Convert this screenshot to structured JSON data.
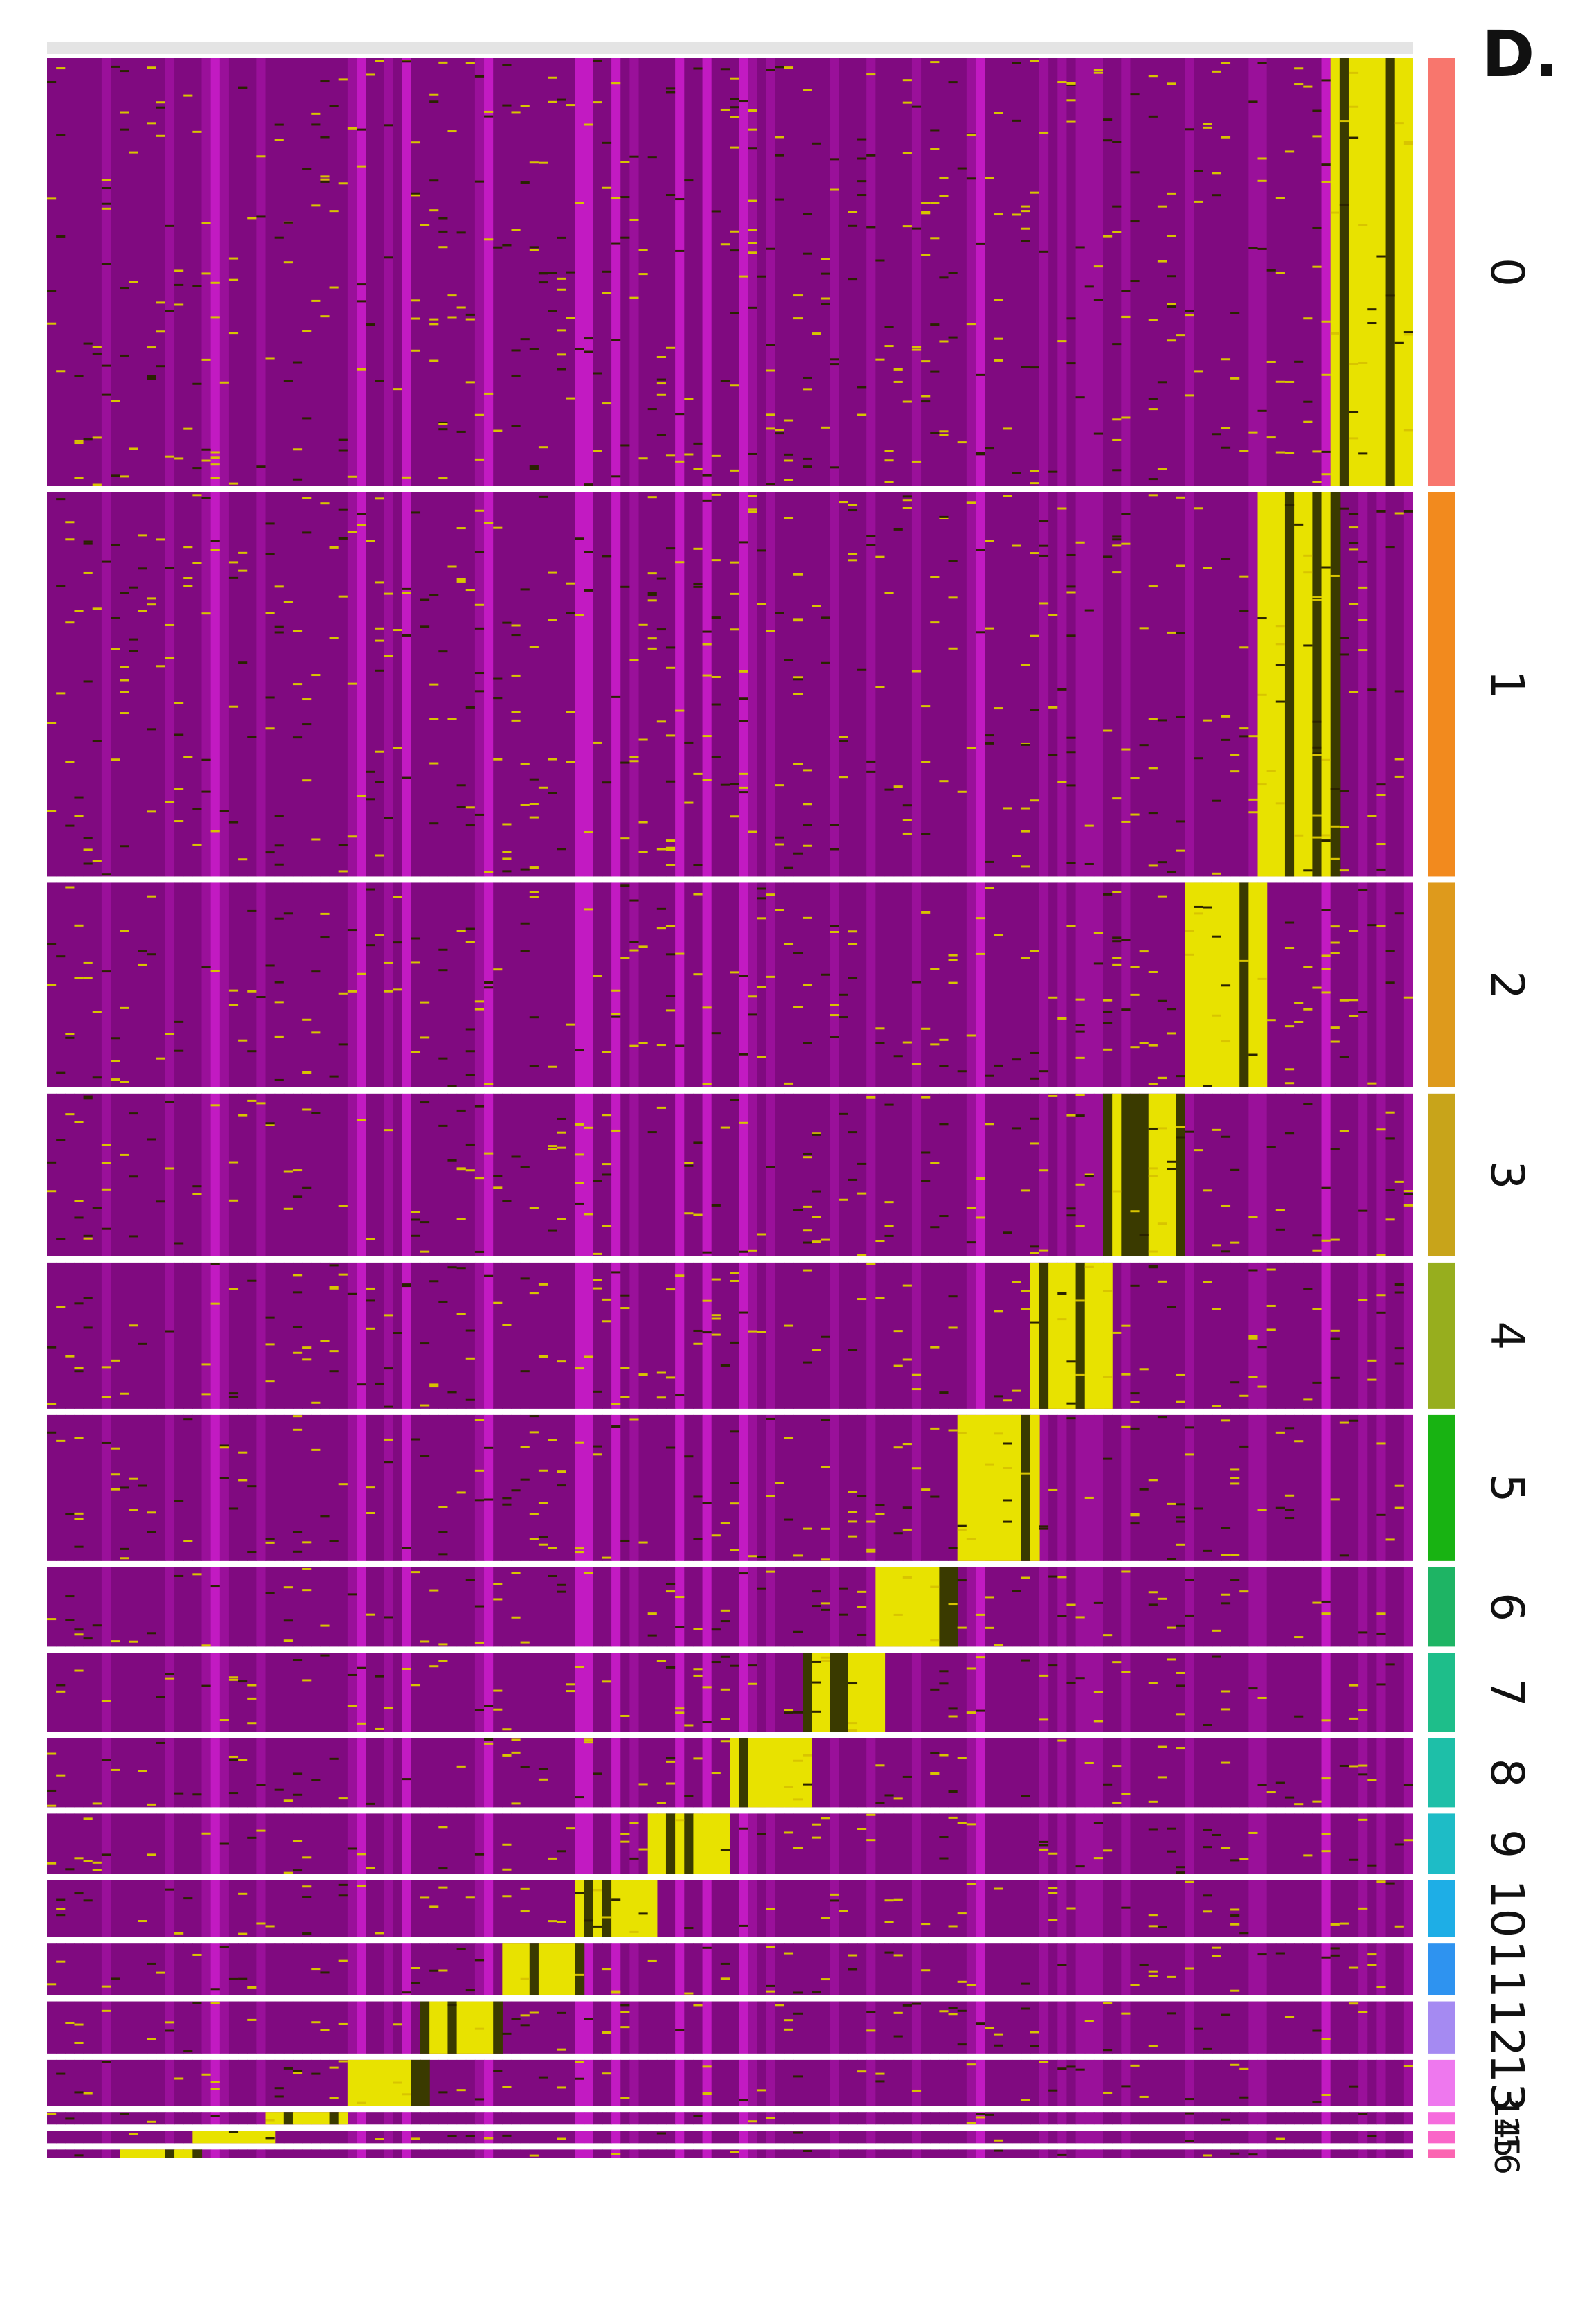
{
  "panel_label": "D.",
  "chart_data": {
    "type": "heatmap",
    "orientation": "rotated-90",
    "title": "",
    "xlabel": "",
    "ylabel": "",
    "clusters": [
      "0",
      "1",
      "2",
      "3",
      "4",
      "5",
      "6",
      "7",
      "8",
      "9",
      "10",
      "11",
      "12",
      "13",
      "14",
      "15",
      "16"
    ],
    "cluster_cell_share": [
      0.205,
      0.184,
      0.098,
      0.078,
      0.07,
      0.07,
      0.038,
      0.038,
      0.033,
      0.029,
      0.027,
      0.025,
      0.025,
      0.022,
      0.006,
      0.006,
      0.004
    ],
    "cluster_colors": [
      "#F8766D",
      "#F28A1E",
      "#DE9A1C",
      "#C8A41A",
      "#97AE1E",
      "#18B312",
      "#1EB464",
      "#1EBE8A",
      "#1EBFA8",
      "#1EBCC6",
      "#1EAEE6",
      "#2E93F0",
      "#A58AF2",
      "#EE78EE",
      "#F66CDD",
      "#FA66C8",
      "#FB66B2"
    ],
    "scale_colors": {
      "low": "#FF00FF",
      "mid": "#000000",
      "high": "#FFFF00"
    }
  }
}
